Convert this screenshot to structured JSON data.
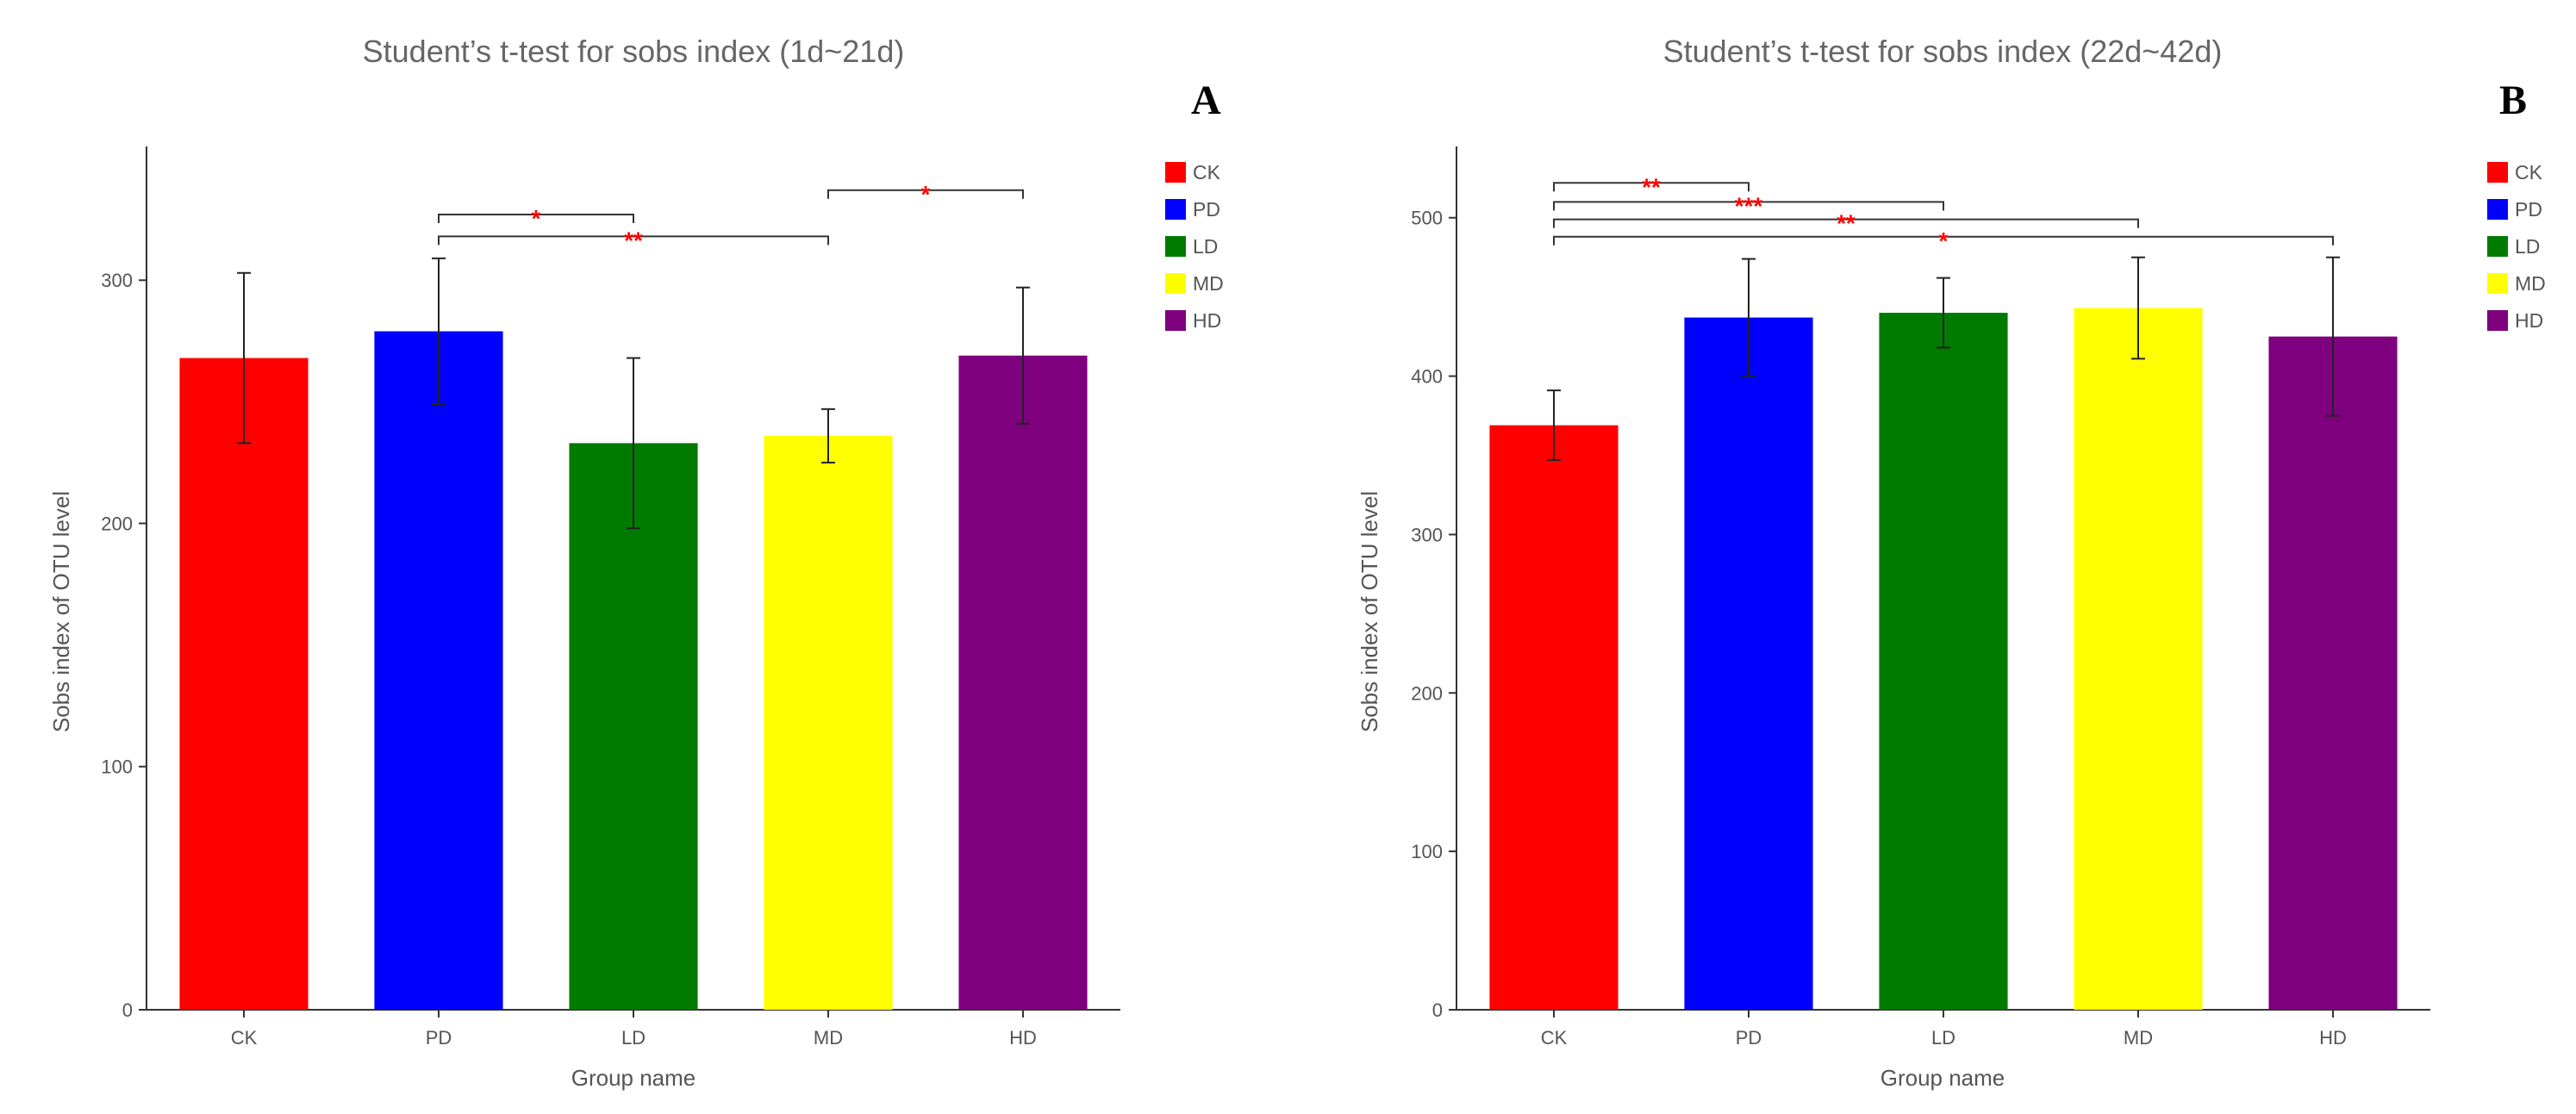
{
  "chart_data": [
    {
      "panel": "A",
      "type": "bar",
      "title": "Student’s t-test for sobs index (1d~21d)",
      "xlabel": "Group name",
      "ylabel": "Sobs index of OTU level",
      "ylim": [
        0,
        355
      ],
      "yticks": [
        0,
        100,
        200,
        300
      ],
      "categories": [
        "CK",
        "PD",
        "LD",
        "MD",
        "HD"
      ],
      "values": [
        268,
        279,
        233,
        236,
        269
      ],
      "error": [
        35,
        30,
        35,
        11,
        28
      ],
      "colors": [
        "#ff0000",
        "#0000ff",
        "#007b00",
        "#ffff00",
        "#7e007e"
      ],
      "legend": [
        "CK",
        "PD",
        "LD",
        "MD",
        "HD"
      ],
      "legend_position": "top-right",
      "significance": [
        {
          "from": "PD",
          "to": "LD",
          "label": "*",
          "level": 327
        },
        {
          "from": "PD",
          "to": "MD",
          "label": "**",
          "level": 318
        },
        {
          "from": "MD",
          "to": "HD",
          "label": "*",
          "level": 337
        }
      ]
    },
    {
      "panel": "B",
      "type": "bar",
      "title": "Student’s t-test for sobs index (22d~42d)",
      "xlabel": "Group name",
      "ylabel": "Sobs index of OTU level",
      "ylim": [
        0,
        545
      ],
      "yticks": [
        0,
        100,
        200,
        300,
        400,
        500
      ],
      "categories": [
        "CK",
        "PD",
        "LD",
        "MD",
        "HD"
      ],
      "values": [
        369,
        437,
        440,
        443,
        425
      ],
      "error": [
        22,
        37,
        22,
        32,
        50
      ],
      "colors": [
        "#ff0000",
        "#0000ff",
        "#007b00",
        "#ffff00",
        "#7e007e"
      ],
      "legend": [
        "CK",
        "PD",
        "LD",
        "MD",
        "HD"
      ],
      "legend_position": "top-right",
      "significance": [
        {
          "from": "CK",
          "to": "PD",
          "label": "**",
          "level": 522
        },
        {
          "from": "CK",
          "to": "LD",
          "label": "***",
          "level": 510
        },
        {
          "from": "CK",
          "to": "MD",
          "label": "**",
          "level": 499
        },
        {
          "from": "CK",
          "to": "HD",
          "label": "*",
          "level": 488
        }
      ]
    }
  ]
}
